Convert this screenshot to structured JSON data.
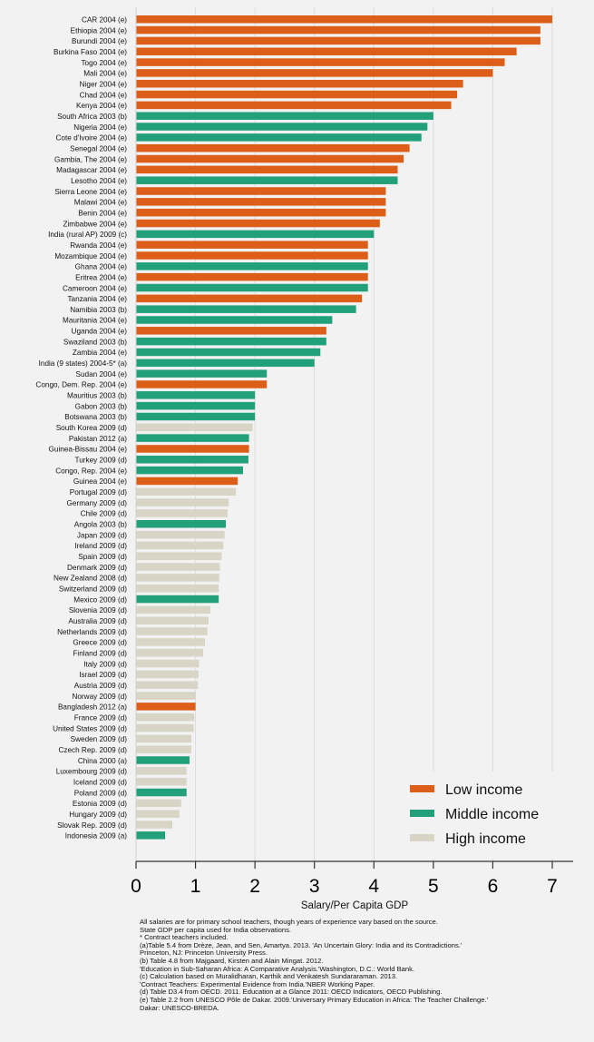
{
  "chart_data": {
    "type": "bar",
    "orientation": "horizontal",
    "title": "",
    "xlabel": "Salary/Per Capita GDP",
    "ylabel": "",
    "xlim": [
      0,
      7.3
    ],
    "xticks": [
      0,
      1,
      2,
      3,
      4,
      5,
      6,
      7
    ],
    "grid": true,
    "legend_position": "bottom-right",
    "groups": [
      {
        "key": "L",
        "name": "Low income",
        "color": "#dc5e18"
      },
      {
        "key": "M",
        "name": "Middle income",
        "color": "#22a07a"
      },
      {
        "key": "H",
        "name": "High income",
        "color": "#d8d4c6"
      }
    ],
    "bars": [
      {
        "label": "CAR 2004 (e)",
        "value": 7.0,
        "group": "L"
      },
      {
        "label": "Ethiopia 2004 (e)",
        "value": 6.8,
        "group": "L"
      },
      {
        "label": "Burundi 2004 (e)",
        "value": 6.8,
        "group": "L"
      },
      {
        "label": "Burkina Faso 2004 (e)",
        "value": 6.4,
        "group": "L"
      },
      {
        "label": "Togo 2004 (e)",
        "value": 6.2,
        "group": "L"
      },
      {
        "label": "Mali 2004 (e)",
        "value": 6.0,
        "group": "L"
      },
      {
        "label": "Niger 2004 (e)",
        "value": 5.5,
        "group": "L"
      },
      {
        "label": "Chad 2004 (e)",
        "value": 5.4,
        "group": "L"
      },
      {
        "label": "Kenya 2004 (e)",
        "value": 5.3,
        "group": "L"
      },
      {
        "label": "South Africa 2003 (b)",
        "value": 5.0,
        "group": "M"
      },
      {
        "label": "Nigeria 2004 (e)",
        "value": 4.9,
        "group": "M"
      },
      {
        "label": "Cote d'Ivoire 2004 (e)",
        "value": 4.8,
        "group": "M"
      },
      {
        "label": "Senegal 2004 (e)",
        "value": 4.6,
        "group": "L"
      },
      {
        "label": "Gambia, The 2004 (e)",
        "value": 4.5,
        "group": "L"
      },
      {
        "label": "Madagascar 2004 (e)",
        "value": 4.4,
        "group": "L"
      },
      {
        "label": "Lesotho 2004 (e)",
        "value": 4.4,
        "group": "M"
      },
      {
        "label": "Sierra Leone 2004 (e)",
        "value": 4.2,
        "group": "L"
      },
      {
        "label": "Malawi 2004 (e)",
        "value": 4.2,
        "group": "L"
      },
      {
        "label": "Benin 2004 (e)",
        "value": 4.2,
        "group": "L"
      },
      {
        "label": "Zimbabwe 2004 (e)",
        "value": 4.1,
        "group": "L"
      },
      {
        "label": "India (rural AP) 2009 (c)",
        "value": 4.0,
        "group": "M"
      },
      {
        "label": "Rwanda 2004 (e)",
        "value": 3.9,
        "group": "L"
      },
      {
        "label": "Mozambique 2004 (e)",
        "value": 3.9,
        "group": "L"
      },
      {
        "label": "Ghana 2004 (e)",
        "value": 3.9,
        "group": "M"
      },
      {
        "label": "Eritrea 2004 (e)",
        "value": 3.9,
        "group": "L"
      },
      {
        "label": "Cameroon 2004 (e)",
        "value": 3.9,
        "group": "M"
      },
      {
        "label": "Tanzania 2004 (e)",
        "value": 3.8,
        "group": "L"
      },
      {
        "label": "Namibia 2003 (b)",
        "value": 3.7,
        "group": "M"
      },
      {
        "label": "Mauritania 2004 (e)",
        "value": 3.3,
        "group": "M"
      },
      {
        "label": "Uganda 2004 (e)",
        "value": 3.2,
        "group": "L"
      },
      {
        "label": "Swaziland 2003 (b)",
        "value": 3.2,
        "group": "M"
      },
      {
        "label": "Zambia 2004 (e)",
        "value": 3.1,
        "group": "M"
      },
      {
        "label": "India (9 states) 2004-5* (a)",
        "value": 3.0,
        "group": "M"
      },
      {
        "label": "Sudan 2004 (e)",
        "value": 2.2,
        "group": "M"
      },
      {
        "label": "Congo, Dem. Rep. 2004 (e)",
        "value": 2.2,
        "group": "L"
      },
      {
        "label": "Mauritius 2003 (b)",
        "value": 2.0,
        "group": "M"
      },
      {
        "label": "Gabon 2003 (b)",
        "value": 2.0,
        "group": "M"
      },
      {
        "label": "Botswana 2003 (b)",
        "value": 2.0,
        "group": "M"
      },
      {
        "label": "South Korea 2009 (d)",
        "value": 1.96,
        "group": "H"
      },
      {
        "label": "Pakistan 2012 (a)",
        "value": 1.9,
        "group": "M"
      },
      {
        "label": "Guinea-Bissau 2004 (e)",
        "value": 1.9,
        "group": "L"
      },
      {
        "label": "Turkey 2009 (d)",
        "value": 1.89,
        "group": "M"
      },
      {
        "label": "Congo, Rep. 2004 (e)",
        "value": 1.8,
        "group": "M"
      },
      {
        "label": "Guinea 2004 (e)",
        "value": 1.71,
        "group": "L"
      },
      {
        "label": "Portugal 2009 (d)",
        "value": 1.68,
        "group": "H"
      },
      {
        "label": "Germany 2009 (d)",
        "value": 1.56,
        "group": "H"
      },
      {
        "label": "Chile 2009 (d)",
        "value": 1.54,
        "group": "H"
      },
      {
        "label": "Angola 2003 (b)",
        "value": 1.51,
        "group": "M"
      },
      {
        "label": "Japan 2009 (d)",
        "value": 1.49,
        "group": "H"
      },
      {
        "label": "Ireland 2009 (d)",
        "value": 1.47,
        "group": "H"
      },
      {
        "label": "Spain 2009 (d)",
        "value": 1.44,
        "group": "H"
      },
      {
        "label": "Denmark 2009 (d)",
        "value": 1.41,
        "group": "H"
      },
      {
        "label": "New Zealand 2008 (d)",
        "value": 1.4,
        "group": "H"
      },
      {
        "label": "Switzerland 2009 (d)",
        "value": 1.39,
        "group": "H"
      },
      {
        "label": "Mexico 2009 (d)",
        "value": 1.39,
        "group": "M"
      },
      {
        "label": "Slovenia 2009 (d)",
        "value": 1.25,
        "group": "H"
      },
      {
        "label": "Australia 2009 (d)",
        "value": 1.22,
        "group": "H"
      },
      {
        "label": "Netherlands 2009 (d)",
        "value": 1.2,
        "group": "H"
      },
      {
        "label": "Greece 2009 (d)",
        "value": 1.16,
        "group": "H"
      },
      {
        "label": "Finland 2009 (d)",
        "value": 1.13,
        "group": "H"
      },
      {
        "label": "Italy 2009 (d)",
        "value": 1.06,
        "group": "H"
      },
      {
        "label": "Israel 2009 (d)",
        "value": 1.05,
        "group": "H"
      },
      {
        "label": "Austria 2009 (d)",
        "value": 1.04,
        "group": "H"
      },
      {
        "label": "Norway 2009 (d)",
        "value": 1.0,
        "group": "H"
      },
      {
        "label": "Bangladesh 2012 (a)",
        "value": 1.0,
        "group": "L"
      },
      {
        "label": "France 2009 (d)",
        "value": 0.98,
        "group": "H"
      },
      {
        "label": "United States 2009 (d)",
        "value": 0.97,
        "group": "H"
      },
      {
        "label": "Sweden 2009 (d)",
        "value": 0.93,
        "group": "H"
      },
      {
        "label": "Czech Rep. 2009 (d)",
        "value": 0.93,
        "group": "H"
      },
      {
        "label": "China 2000 (a)",
        "value": 0.9,
        "group": "M"
      },
      {
        "label": "Luxembourg 2009 (d)",
        "value": 0.85,
        "group": "H"
      },
      {
        "label": "Iceland 2009 (d)",
        "value": 0.85,
        "group": "H"
      },
      {
        "label": "Poland 2009 (d)",
        "value": 0.85,
        "group": "M"
      },
      {
        "label": "Estonia 2009 (d)",
        "value": 0.76,
        "group": "H"
      },
      {
        "label": "Hungary 2009 (d)",
        "value": 0.73,
        "group": "H"
      },
      {
        "label": "Slovak Rep. 2009 (d)",
        "value": 0.61,
        "group": "H"
      },
      {
        "label": "Indonesia 2009 (a)",
        "value": 0.49,
        "group": "M"
      }
    ]
  },
  "notes": [
    "All salaries are for primary school teachers, though years of experience vary based on the source.",
    "State GDP per capita used for India observations.",
    "* Contract teachers included.",
    "(a)Table 5.4 from Drèze, Jean, and Sen, Amartya. 2013. 'An Uncertain Glory: India and its Contradictions.'",
    "Princeton, NJ: Princeton University Press.",
    "(b) Table 4.8 from Majgaard, Kirsten and Alain Mingat. 2012.",
    " 'Education in Sub-Saharan Africa: A Comparative Analysis.'Washington, D.C.: World Bank.",
    "(c) Calculation based on Muralidharan, Karthik and Venkatesh Sundararaman. 2013.",
    " 'Contract Teachers: Experimental Evidence from India.'NBER Working Paper.",
    "(d) Table D3.4 from OECD. 2011. Education at a Glance 2011: OECD Indicators, OECD Publishing.",
    "(e) Table 2.2 from UNESCO Pôle de Dakar. 2009.'Universary Primary Education in Africa: The Teacher Challenge.'",
    "Dakar: UNESCO-BREDA."
  ]
}
